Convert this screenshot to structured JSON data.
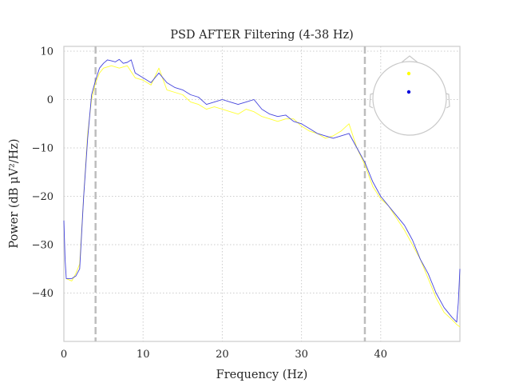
{
  "chart_data": {
    "type": "line",
    "title": "PSD AFTER Filtering (4-38 Hz)",
    "xlabel": "Frequency (Hz)",
    "ylabel": "Power (dB μV²/Hz)",
    "xlim": [
      0,
      50
    ],
    "ylim": [
      -50,
      11
    ],
    "xticks": [
      0,
      10,
      20,
      30,
      40
    ],
    "yticks": [
      10,
      0,
      -10,
      -20,
      -30,
      -40
    ],
    "xtick_labels": [
      "0",
      "10",
      "20",
      "30",
      "40"
    ],
    "ytick_labels": [
      "10",
      "0",
      "−10",
      "−20",
      "−30",
      "−40"
    ],
    "grid": true,
    "grid_style": "dotted",
    "filter_band_markers": [
      4,
      38
    ],
    "sensor_inset": "top-right",
    "series": [
      {
        "color": "#4444dd",
        "x": [
          0,
          0.15,
          0.3,
          1,
          1.5,
          2,
          2.5,
          3,
          3.5,
          4,
          4.5,
          5,
          5.5,
          6,
          6.5,
          7,
          7.5,
          8,
          8.5,
          9,
          10,
          11,
          12,
          13,
          14,
          15,
          16,
          17,
          18,
          19,
          20,
          21,
          22,
          23,
          24,
          25,
          26,
          27,
          28,
          29,
          30,
          31,
          32,
          33,
          34,
          35,
          36,
          37,
          38,
          39,
          40,
          41,
          42,
          43,
          44,
          45,
          46,
          47,
          48,
          49,
          49.6,
          49.8,
          50
        ],
        "y": [
          -25,
          -33,
          -37,
          -37,
          -36.5,
          -35,
          -20,
          -8,
          1,
          4,
          6.5,
          7.5,
          8.2,
          8,
          7.8,
          8.3,
          7.5,
          7.7,
          8.2,
          5.5,
          4.5,
          3.5,
          5.5,
          3.5,
          2.5,
          2,
          1,
          0.5,
          -1,
          -0.5,
          0,
          -0.5,
          -1,
          -0.5,
          0,
          -2,
          -3,
          -3.5,
          -3.2,
          -4.5,
          -5,
          -6,
          -7,
          -7.5,
          -8,
          -7.5,
          -7,
          -10,
          -13,
          -17,
          -20,
          -22,
          -24,
          -26,
          -29,
          -33,
          -36,
          -40,
          -43,
          -45,
          -46,
          -42,
          -35
        ]
      },
      {
        "color": "#ffff33",
        "x": [
          0.3,
          1,
          1.5,
          2,
          2.5,
          3,
          3.5,
          4,
          4.5,
          5,
          6,
          7,
          8,
          9,
          10,
          11,
          12,
          13,
          14,
          15,
          16,
          17,
          18,
          19,
          20,
          21,
          22,
          23,
          24,
          25,
          26,
          27,
          28,
          29,
          30,
          31,
          32,
          33,
          34,
          35,
          36,
          37,
          38,
          39,
          40,
          41,
          42,
          43,
          44,
          45,
          46,
          47,
          48,
          49,
          49.6,
          50
        ],
        "y": [
          -37,
          -37.5,
          -36,
          -34,
          -20,
          -7,
          0,
          3.5,
          5.5,
          6.5,
          7,
          6.5,
          7,
          4.5,
          4,
          3,
          6.5,
          2,
          1.5,
          1,
          -0.5,
          -1,
          -2,
          -1.5,
          -2,
          -2.5,
          -3,
          -2,
          -2.5,
          -3.5,
          -4,
          -4.5,
          -4,
          -4,
          -5.5,
          -6.5,
          -7,
          -8,
          -7.5,
          -6.5,
          -5,
          -10,
          -13.5,
          -18,
          -20.5,
          -22,
          -24.5,
          -27,
          -30,
          -33,
          -37,
          -41,
          -44,
          -45.5,
          -46.5,
          -47
        ]
      }
    ]
  }
}
